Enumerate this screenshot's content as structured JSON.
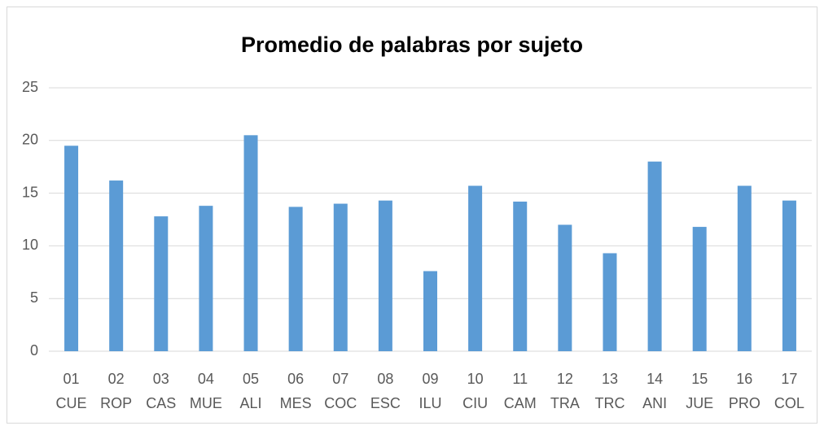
{
  "chart_data": {
    "type": "bar",
    "title": "Promedio de palabras por sujeto",
    "categories": [
      [
        "01",
        "CUE"
      ],
      [
        "02",
        "ROP"
      ],
      [
        "03",
        "CAS"
      ],
      [
        "04",
        "MUE"
      ],
      [
        "05",
        "ALI"
      ],
      [
        "06",
        "MES"
      ],
      [
        "07",
        "COC"
      ],
      [
        "08",
        "ESC"
      ],
      [
        "09",
        "ILU"
      ],
      [
        "10",
        "CIU"
      ],
      [
        "11",
        "CAM"
      ],
      [
        "12",
        "TRA"
      ],
      [
        "13",
        "TRC"
      ],
      [
        "14",
        "ANI"
      ],
      [
        "15",
        "JUE"
      ],
      [
        "16",
        "PRO"
      ],
      [
        "17",
        "COL"
      ]
    ],
    "values": [
      19.5,
      16.2,
      12.8,
      13.8,
      20.5,
      13.7,
      14.0,
      14.3,
      7.6,
      15.7,
      14.2,
      12.0,
      9.3,
      18.0,
      11.8,
      15.7,
      14.3
    ],
    "color": "#5b9bd5",
    "ylim": [
      0,
      25
    ],
    "yticks": [
      0,
      5,
      10,
      15,
      20,
      25
    ],
    "grid": true
  }
}
